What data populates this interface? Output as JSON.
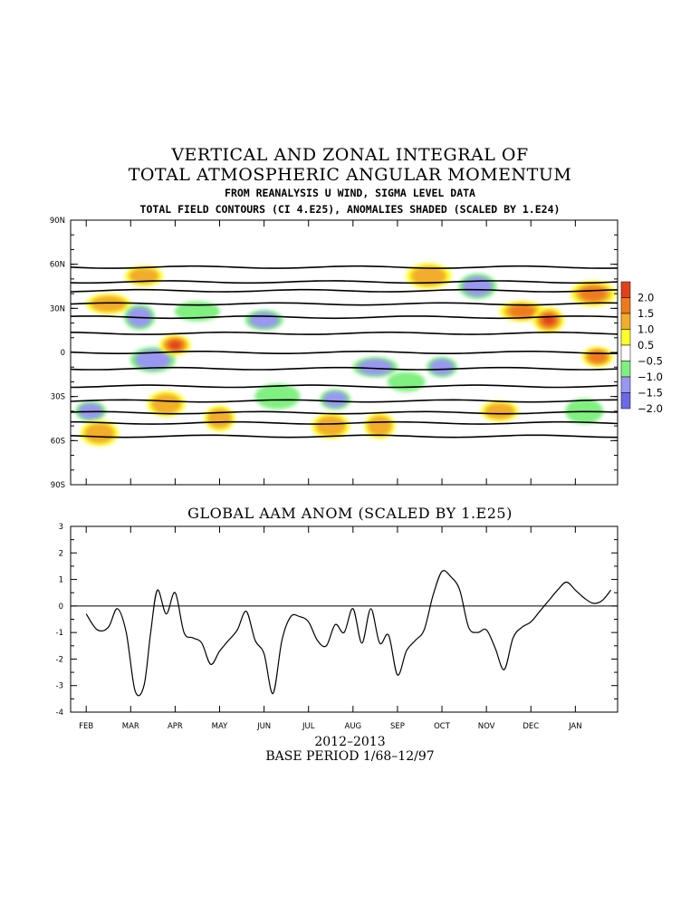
{
  "titles": {
    "line1": "VERTICAL AND ZONAL INTEGRAL OF",
    "line2": "TOTAL ATMOSPHERIC ANGULAR MOMENTUM",
    "sub1": "FROM REANALYSIS U WIND, SIGMA LEVEL DATA",
    "sub2": "TOTAL FIELD CONTOURS (CI 4.E25), ANOMALIES SHADED (SCALED BY 1.E24)"
  },
  "bottom": {
    "title": "GLOBAL AAM ANOM (SCALED BY 1.E25)",
    "year": "2012–2013",
    "base": "BASE PERIOD 1/68–12/97"
  },
  "chart_data": [
    {
      "type": "heatmap",
      "months": [
        "FEB",
        "MAR",
        "APR",
        "MAY",
        "JUN",
        "JUL",
        "AUG",
        "SEP",
        "OCT",
        "NOV",
        "DEC",
        "JAN"
      ],
      "lat_ticks": [
        "90N",
        "60N",
        "30N",
        "0",
        "30S",
        "60S",
        "90S"
      ],
      "lat_values": [
        90,
        60,
        30,
        0,
        -30,
        -60,
        -90
      ],
      "colorbar": {
        "labels": [
          "2.0",
          "1.5",
          "1.0",
          "0.5",
          "−0.5",
          "−1.0",
          "−1.5",
          "−2.0"
        ],
        "colors": [
          "#e0421b",
          "#ee7a1e",
          "#f2ad2a",
          "#ffff2a",
          "#ffffff",
          "#80f080",
          "#9898f0",
          "#6a6ae8"
        ]
      },
      "total_contours_lat": [
        58,
        48,
        42,
        33,
        24,
        13,
        0,
        -11,
        -23,
        -33,
        -41,
        -48,
        -57
      ],
      "anomaly_blobs": [
        {
          "m": 0.1,
          "lat": -40,
          "v": -1.5
        },
        {
          "m": 0.3,
          "lat": -55,
          "v": 1.2
        },
        {
          "m": 0.5,
          "lat": 33,
          "v": 1.0
        },
        {
          "m": 1.2,
          "lat": 24,
          "v": -1.5
        },
        {
          "m": 1.3,
          "lat": 52,
          "v": 1.0
        },
        {
          "m": 1.5,
          "lat": -5,
          "v": -1.5
        },
        {
          "m": 2.0,
          "lat": 5,
          "v": 2.0
        },
        {
          "m": 1.8,
          "lat": -35,
          "v": 1.0
        },
        {
          "m": 2.5,
          "lat": 28,
          "v": -1.0
        },
        {
          "m": 3.0,
          "lat": -45,
          "v": 1.0
        },
        {
          "m": 4.0,
          "lat": 22,
          "v": -1.5
        },
        {
          "m": 4.3,
          "lat": -30,
          "v": -1.0
        },
        {
          "m": 5.6,
          "lat": -32,
          "v": -1.5
        },
        {
          "m": 5.5,
          "lat": -50,
          "v": 1.0
        },
        {
          "m": 6.5,
          "lat": -10,
          "v": -1.5
        },
        {
          "m": 6.6,
          "lat": -50,
          "v": 1.0
        },
        {
          "m": 7.2,
          "lat": -20,
          "v": -1.0
        },
        {
          "m": 7.7,
          "lat": 52,
          "v": 1.0
        },
        {
          "m": 8.0,
          "lat": -10,
          "v": -1.5
        },
        {
          "m": 8.8,
          "lat": 45,
          "v": -1.5
        },
        {
          "m": 9.8,
          "lat": 28,
          "v": 1.5
        },
        {
          "m": 10.4,
          "lat": 22,
          "v": 2.0
        },
        {
          "m": 9.3,
          "lat": -40,
          "v": 1.0
        },
        {
          "m": 11.4,
          "lat": 40,
          "v": 1.5
        },
        {
          "m": 11.5,
          "lat": -3,
          "v": 1.5
        },
        {
          "m": 11.2,
          "lat": -40,
          "v": -1.0
        }
      ]
    },
    {
      "type": "line",
      "ylabel": "",
      "ylim": [
        -4,
        3
      ],
      "yticks": [
        3,
        2,
        1,
        0,
        -1,
        -2,
        -3,
        -4
      ],
      "xticks": [
        "FEB",
        "MAR",
        "APR",
        "MAY",
        "JUN",
        "JUL",
        "AUG",
        "SEP",
        "OCT",
        "NOV",
        "DEC",
        "JAN"
      ],
      "x": [
        0,
        0.25,
        0.5,
        0.7,
        0.9,
        1.1,
        1.3,
        1.45,
        1.6,
        1.8,
        2.0,
        2.2,
        2.4,
        2.6,
        2.8,
        3.0,
        3.2,
        3.4,
        3.6,
        3.8,
        4.0,
        4.2,
        4.4,
        4.6,
        4.8,
        5.0,
        5.2,
        5.4,
        5.6,
        5.8,
        6.0,
        6.2,
        6.4,
        6.6,
        6.8,
        7.0,
        7.2,
        7.4,
        7.6,
        7.8,
        8.0,
        8.2,
        8.4,
        8.6,
        8.8,
        9.0,
        9.2,
        9.4,
        9.6,
        9.8,
        10.0,
        10.2,
        10.4,
        10.6,
        10.8,
        11.0,
        11.2,
        11.4,
        11.6,
        11.8
      ],
      "values": [
        -0.3,
        -0.9,
        -0.8,
        -0.1,
        -1.0,
        -3.2,
        -3.0,
        -1.0,
        0.6,
        -0.3,
        0.5,
        -1.0,
        -1.2,
        -1.4,
        -2.2,
        -1.7,
        -1.3,
        -0.9,
        -0.2,
        -1.3,
        -1.8,
        -3.3,
        -1.3,
        -0.4,
        -0.4,
        -0.6,
        -1.3,
        -1.5,
        -0.7,
        -1.0,
        -0.1,
        -1.4,
        -0.1,
        -1.4,
        -1.1,
        -2.6,
        -1.7,
        -1.3,
        -0.9,
        0.4,
        1.3,
        1.1,
        0.6,
        -0.8,
        -1.0,
        -0.9,
        -1.6,
        -2.4,
        -1.2,
        -0.8,
        -0.6,
        -0.2,
        0.2,
        0.6,
        0.9,
        0.6,
        0.3,
        0.1,
        0.2,
        0.6
      ]
    }
  ]
}
